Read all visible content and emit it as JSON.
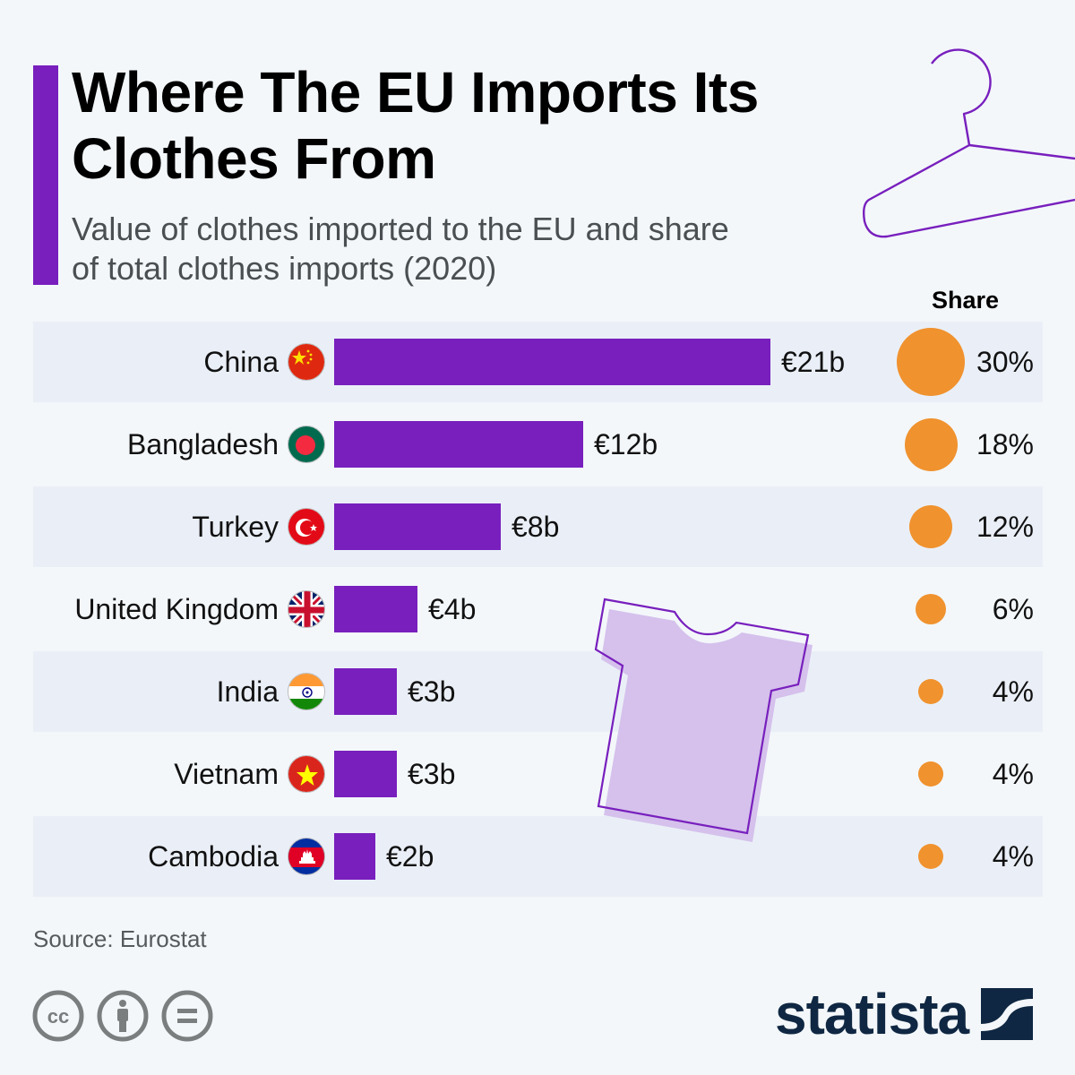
{
  "header": {
    "title": "Where The EU Imports Its Clothes From",
    "subtitle": "Value of clothes imported to the EU and share of total clothes imports (2020)"
  },
  "share_header": "Share",
  "colors": {
    "accent": "#781fbd",
    "bar": "#781fbd",
    "bubble": "#f0922e",
    "row_shade": "#eaeff7",
    "background": "#f3f7fa",
    "logo": "#0f2742"
  },
  "rows": [
    {
      "country": "China",
      "flag": "china-flag-icon",
      "value_label": "€21b",
      "value": 21,
      "share_label": "30%",
      "share": 30
    },
    {
      "country": "Bangladesh",
      "flag": "bangladesh-flag-icon",
      "value_label": "€12b",
      "value": 12,
      "share_label": "18%",
      "share": 18
    },
    {
      "country": "Turkey",
      "flag": "turkey-flag-icon",
      "value_label": "€8b",
      "value": 8,
      "share_label": "12%",
      "share": 12
    },
    {
      "country": "United Kingdom",
      "flag": "uk-flag-icon",
      "value_label": "€4b",
      "value": 4,
      "share_label": "6%",
      "share": 6
    },
    {
      "country": "India",
      "flag": "india-flag-icon",
      "value_label": "€3b",
      "value": 3,
      "share_label": "4%",
      "share": 4
    },
    {
      "country": "Vietnam",
      "flag": "vietnam-flag-icon",
      "value_label": "€3b",
      "value": 3,
      "share_label": "4%",
      "share": 4
    },
    {
      "country": "Cambodia",
      "flag": "cambodia-flag-icon",
      "value_label": "€2b",
      "value": 2,
      "share_label": "4%",
      "share": 4
    }
  ],
  "footer": {
    "source": "Source: Eurostat",
    "license_icons": [
      "cc-icon",
      "attribution-icon",
      "no-derivatives-icon"
    ],
    "logo_text": "statista"
  },
  "chart_data": {
    "type": "bar",
    "title": "Where The EU Imports Its Clothes From",
    "subtitle": "Value of clothes imported to the EU and share of total clothes imports (2020)",
    "orientation": "horizontal",
    "categories": [
      "China",
      "Bangladesh",
      "Turkey",
      "United Kingdom",
      "India",
      "Vietnam",
      "Cambodia"
    ],
    "series": [
      {
        "name": "Import value (€ billion)",
        "values": [
          21,
          12,
          8,
          4,
          3,
          3,
          2
        ],
        "labels": [
          "€21b",
          "€12b",
          "€8b",
          "€4b",
          "€3b",
          "€3b",
          "€2b"
        ]
      },
      {
        "name": "Share",
        "values": [
          30,
          18,
          12,
          6,
          4,
          4,
          4
        ],
        "labels": [
          "30%",
          "18%",
          "12%",
          "6%",
          "4%",
          "4%",
          "4%"
        ],
        "encoding": "bubble size"
      }
    ],
    "xlabel": "",
    "ylabel": "",
    "grid": false,
    "legend": "none",
    "source": "Source: Eurostat"
  }
}
